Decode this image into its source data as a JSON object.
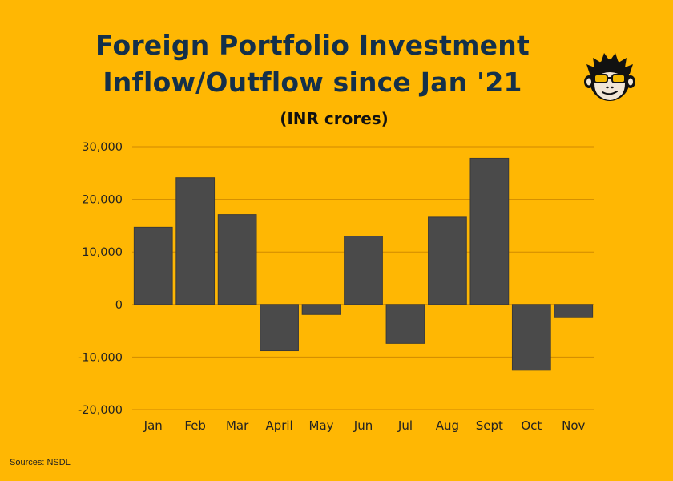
{
  "title_line1": "Foreign Portfolio Investment",
  "title_line2": "Inflow/Outflow since Jan '21",
  "logo_icon": "monkey-with-sunglasses-icon",
  "source": "Sources: NSDL",
  "colors": {
    "background": "#FFB703",
    "bar": "#4A4A4A",
    "title": "#14304A",
    "gridline": "#D08A00"
  },
  "chart_data": {
    "type": "bar",
    "title": "Foreign Portfolio Investment Inflow/Outflow since Jan '21",
    "subtitle": "(INR crores)",
    "xlabel": "",
    "ylabel": "",
    "categories": [
      "Jan",
      "Feb",
      "Mar",
      "April",
      "May",
      "Jun",
      "Jul",
      "Aug",
      "Sept",
      "Oct",
      "Nov"
    ],
    "values": [
      14700,
      24100,
      17100,
      -8800,
      -1900,
      13000,
      -7400,
      16600,
      27800,
      -12500,
      -2500
    ],
    "ylim": [
      -20000,
      30000
    ],
    "yticks": [
      30000,
      20000,
      10000,
      0,
      -10000,
      -20000
    ],
    "ytick_labels": [
      "30,000",
      "20,000",
      "10,000",
      "0",
      "-10,000",
      "-20,000"
    ],
    "grid": true,
    "legend": "none"
  }
}
